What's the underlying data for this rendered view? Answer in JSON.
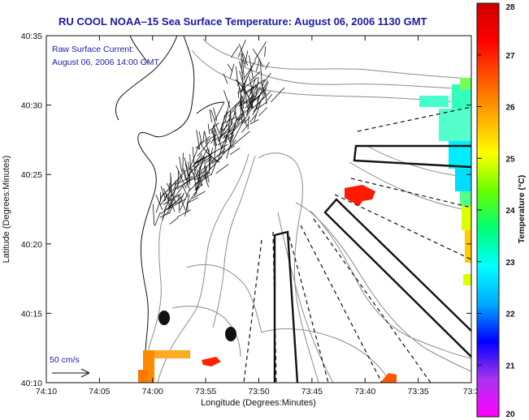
{
  "header": {
    "title": "RU COOL  NOAA–15  Sea Surface Temperature:  August 06, 2006 1130 GMT"
  },
  "overlay": {
    "line1": "Raw Surface Current:",
    "line2": "August 06, 2006 14:00 GMT",
    "scale_label": "50 cm/s"
  },
  "map": {
    "x_axis": {
      "label": "Longitude (Degrees:Minutes)",
      "ticks": [
        "74:10",
        "74:05",
        "74:00",
        "73:55",
        "73:50",
        "73:45",
        "73:40",
        "73:35",
        "73:3"
      ]
    },
    "y_axis": {
      "label": "Latitude (Degrees:Minutes)",
      "ticks": [
        "40:35",
        "40:30",
        "40:25",
        "40:20",
        "40:15",
        "40:10"
      ]
    }
  },
  "colorbar": {
    "label": "Temperature (°C)",
    "ticks": [
      "28",
      "27",
      "26",
      "25",
      "24",
      "23",
      "22",
      "21",
      "20"
    ],
    "range": [
      20,
      28
    ],
    "colors": [
      "#ff00ff",
      "#aa33ee",
      "#0000ff",
      "#00aaff",
      "#00ffff",
      "#00ff77",
      "#66ff00",
      "#ffff00",
      "#ffaa00",
      "#ff5500",
      "#ff0000",
      "#cc0000"
    ]
  }
}
